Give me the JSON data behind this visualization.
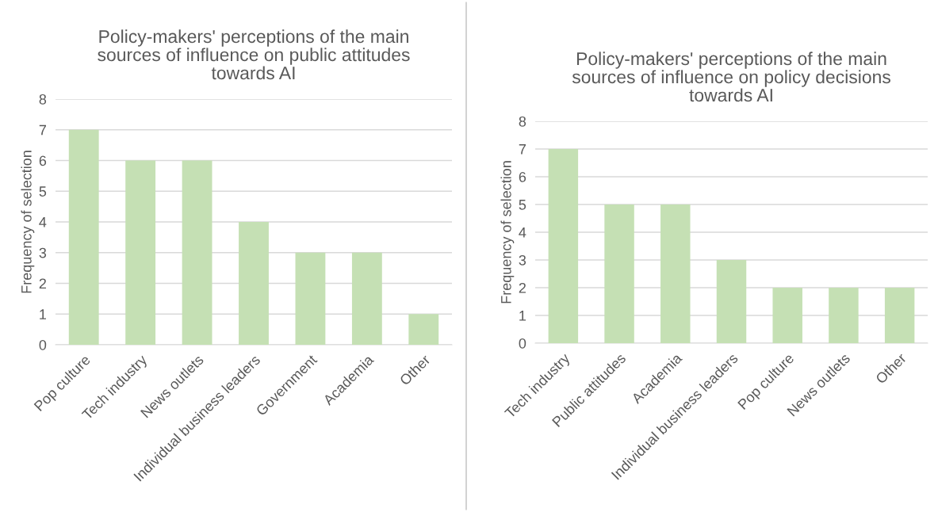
{
  "chart_data": [
    {
      "type": "bar",
      "title": "Policy-makers' perceptions of the main\nsources of influence on public attitudes\ntowards AI",
      "ylabel": "Frequency of selection",
      "categories": [
        "Pop culture",
        "Tech industry",
        "News outlets",
        "Individual business leaders",
        "Government",
        "Academia",
        "Other"
      ],
      "values": [
        7,
        6,
        6,
        4,
        3,
        3,
        1
      ],
      "color": "#c5e0b4",
      "ylim": [
        0,
        8
      ],
      "yticks": [
        0,
        1,
        2,
        3,
        4,
        5,
        6,
        7,
        8
      ],
      "grid": "y",
      "legend": false
    },
    {
      "type": "bar",
      "title": "Policy-makers' perceptions of the main\nsources of influence on policy decisions\ntowards AI",
      "ylabel": "Frequency of selection",
      "categories": [
        "Tech industry",
        "Public attitudes",
        "Academia",
        "Individual business leaders",
        "Pop culture",
        "News outlets",
        "Other"
      ],
      "values": [
        7,
        5,
        5,
        3,
        2,
        2,
        2
      ],
      "color": "#c5e0b4",
      "ylim": [
        0,
        8
      ],
      "yticks": [
        0,
        1,
        2,
        3,
        4,
        5,
        6,
        7,
        8
      ],
      "grid": "y",
      "legend": false
    }
  ]
}
